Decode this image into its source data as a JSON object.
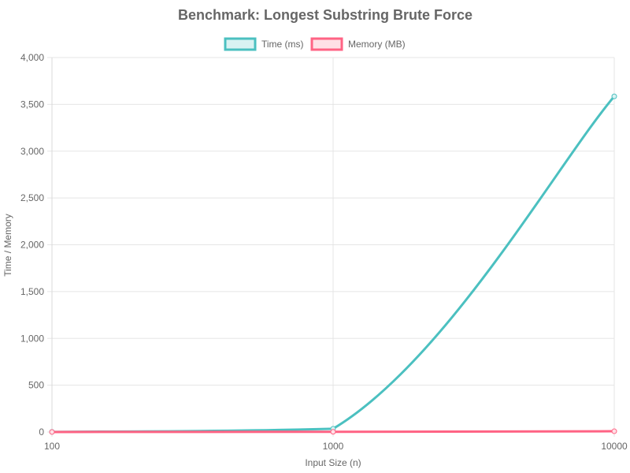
{
  "chart_data": {
    "type": "line",
    "title": "Benchmark: Longest Substring Brute Force",
    "xlabel": "Input Size (n)",
    "ylabel": "Time / Memory",
    "categories": [
      "100",
      "1000",
      "10000"
    ],
    "ylim": [
      0,
      4000
    ],
    "yticks": [
      "0",
      "500",
      "1,000",
      "1,500",
      "2,000",
      "2,500",
      "3,000",
      "3,500",
      "4,000"
    ],
    "ytick_values": [
      0,
      500,
      1000,
      1500,
      2000,
      2500,
      3000,
      3500,
      4000
    ],
    "legend_position": "top",
    "grid": true,
    "series": [
      {
        "name": "Time (ms)",
        "values": [
          1,
          35,
          3585
        ],
        "color": "#4bc0c0",
        "fill": "#d9f2f2"
      },
      {
        "name": "Memory (MB)",
        "values": [
          0.5,
          2,
          8
        ],
        "color": "#ff6384",
        "fill": "#ffe0e6"
      }
    ]
  }
}
